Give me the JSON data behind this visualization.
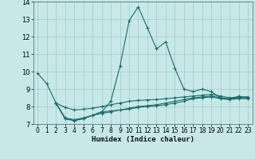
{
  "background_color": "#c8e8e8",
  "grid_color": "#a0c8c8",
  "line_color": "#1a6b6b",
  "xlabel": "Humidex (Indice chaleur)",
  "xlim": [
    -0.5,
    23.5
  ],
  "ylim": [
    7,
    14
  ],
  "yticks": [
    7,
    8,
    9,
    10,
    11,
    12,
    13,
    14
  ],
  "xticks": [
    0,
    1,
    2,
    3,
    4,
    5,
    6,
    7,
    8,
    9,
    10,
    11,
    12,
    13,
    14,
    15,
    16,
    17,
    18,
    19,
    20,
    21,
    22,
    23
  ],
  "line_main_x": [
    0,
    1,
    2,
    3,
    4,
    5,
    6,
    7,
    8,
    9,
    10,
    11,
    12,
    13,
    14,
    15,
    16,
    17,
    18,
    19,
    20,
    21,
    22,
    23
  ],
  "line_main_y": [
    9.9,
    9.3,
    8.2,
    7.3,
    7.2,
    7.3,
    7.5,
    7.7,
    8.3,
    10.3,
    12.9,
    13.7,
    12.5,
    11.3,
    11.7,
    10.2,
    9.0,
    8.85,
    9.0,
    8.85,
    8.5,
    8.4,
    8.6,
    8.5
  ],
  "line_flat1_x": [
    2,
    3,
    4,
    5,
    6,
    7,
    8,
    9,
    10,
    11,
    12,
    13,
    14,
    15,
    16,
    17,
    18,
    19,
    20,
    21,
    22,
    23
  ],
  "line_flat1_y": [
    8.2,
    7.95,
    7.8,
    7.85,
    7.9,
    8.0,
    8.1,
    8.2,
    8.3,
    8.35,
    8.38,
    8.4,
    8.45,
    8.5,
    8.55,
    8.6,
    8.65,
    8.7,
    8.6,
    8.5,
    8.55,
    8.55
  ],
  "line_flat2_x": [
    2,
    3,
    4,
    5,
    6,
    7,
    8,
    9,
    10,
    11,
    12,
    13,
    14,
    15,
    16,
    17,
    18,
    19,
    20,
    21,
    22,
    23
  ],
  "line_flat2_y": [
    8.2,
    7.35,
    7.25,
    7.35,
    7.5,
    7.6,
    7.7,
    7.8,
    7.9,
    8.0,
    8.05,
    8.1,
    8.2,
    8.3,
    8.4,
    8.5,
    8.55,
    8.6,
    8.5,
    8.45,
    8.5,
    8.5
  ],
  "line_flat3_x": [
    2,
    3,
    4,
    5,
    6,
    7,
    8,
    9,
    10,
    11,
    12,
    13,
    14,
    15,
    16,
    17,
    18,
    19,
    20,
    21,
    22,
    23
  ],
  "line_flat3_y": [
    8.2,
    7.3,
    7.2,
    7.3,
    7.5,
    7.7,
    7.75,
    7.8,
    7.85,
    7.95,
    8.0,
    8.05,
    8.1,
    8.2,
    8.3,
    8.45,
    8.5,
    8.55,
    8.45,
    8.4,
    8.45,
    8.45
  ]
}
